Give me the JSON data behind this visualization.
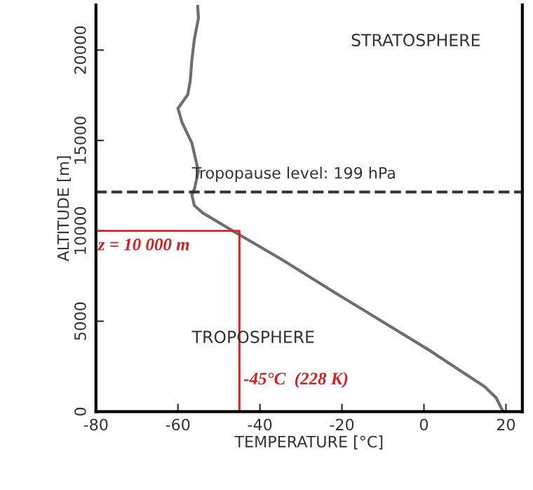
{
  "chart_data": {
    "type": "line",
    "xlabel": "TEMPERATURE [°C]",
    "ylabel": "ALTITUDE [m]",
    "xlim": [
      -80,
      24
    ],
    "ylim": [
      0,
      22500
    ],
    "xticks": [
      -80,
      -60,
      -40,
      -20,
      0,
      20
    ],
    "yticks": [
      0,
      5000,
      10000,
      15000,
      20000
    ],
    "grid": false,
    "legend": false,
    "series": [
      {
        "color": "#6e6e6e",
        "x": [
          19.3,
          17.6,
          14.8,
          3.4,
          2,
          -21.4,
          -35,
          -45.5,
          -54,
          -56,
          -56.6,
          -56,
          -55,
          -56.6,
          -59,
          -60,
          -57.6,
          -57,
          -56.6,
          -56,
          -55,
          -55.2
        ],
        "values": [
          0,
          770,
          1380,
          3080,
          3300,
          6540,
          8460,
          9850,
          11000,
          11400,
          12000,
          12300,
          13300,
          14850,
          16000,
          16770,
          17540,
          18300,
          19460,
          20600,
          21770,
          22500
        ]
      },
      {
        "color": "#d42020",
        "x": [
          -80,
          -45,
          -45
        ],
        "values": [
          10000,
          10000,
          0
        ]
      }
    ],
    "ref_lines": [
      {
        "axis": "y",
        "value": 12150,
        "color": "#333333",
        "line_style": "dashed"
      }
    ],
    "annotations": [
      "STRATOSPHERE",
      "TROPOSPHERE",
      "Tropopause level: 199 hPa",
      {
        "text": "z = 10 000 m",
        "x": -80,
        "y": 10000
      },
      {
        "text": "-45°C  (228 K)",
        "x": -45,
        "y": 0
      }
    ]
  }
}
